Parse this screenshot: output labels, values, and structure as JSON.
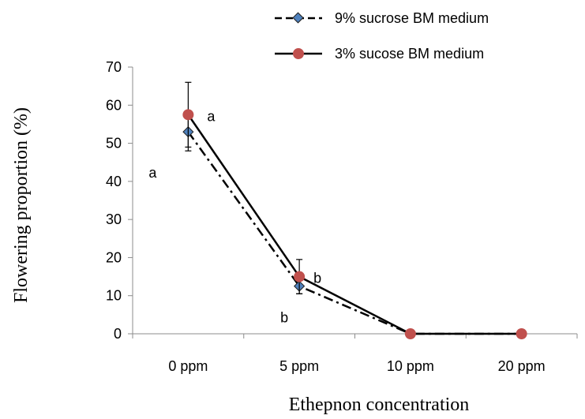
{
  "chart_data": {
    "type": "line",
    "title": "",
    "xlabel": "Ethepnon concentration",
    "ylabel": "Flowering proportion (%)",
    "categories": [
      "0 ppm",
      "5 ppm",
      "10 ppm",
      "20 ppm"
    ],
    "ylim": [
      0,
      70
    ],
    "yticks": [
      0,
      10,
      20,
      30,
      40,
      50,
      60,
      70
    ],
    "grid": false,
    "legend_position": "top-right",
    "series": [
      {
        "name": "9% sucrose BM medium",
        "values": [
          53,
          12.5,
          0,
          0
        ],
        "error": [
          5,
          2,
          0,
          0
        ],
        "line_style": "dash-dot",
        "marker": "diamond",
        "color": "#000000",
        "marker_fill": "#4f81bd"
      },
      {
        "name": "3% sucose BM medium",
        "values": [
          57.5,
          15,
          0,
          0
        ],
        "error": [
          8.5,
          4.5,
          0,
          0
        ],
        "line_style": "solid",
        "marker": "circle",
        "color": "#000000",
        "marker_fill": "#c0504d"
      }
    ],
    "annotations": [
      {
        "text": "a",
        "near_category": "0 ppm",
        "near_value": 57.5,
        "series": "3% sucose BM medium"
      },
      {
        "text": "a",
        "near_category": "0 ppm",
        "near_value": 42,
        "series": "9% sucrose BM medium"
      },
      {
        "text": "b",
        "near_category": "5 ppm",
        "near_value": 15,
        "series": "3% sucose BM medium"
      },
      {
        "text": "b",
        "near_category": "5 ppm",
        "near_value": 4,
        "series": "9% sucrose BM medium"
      }
    ]
  }
}
